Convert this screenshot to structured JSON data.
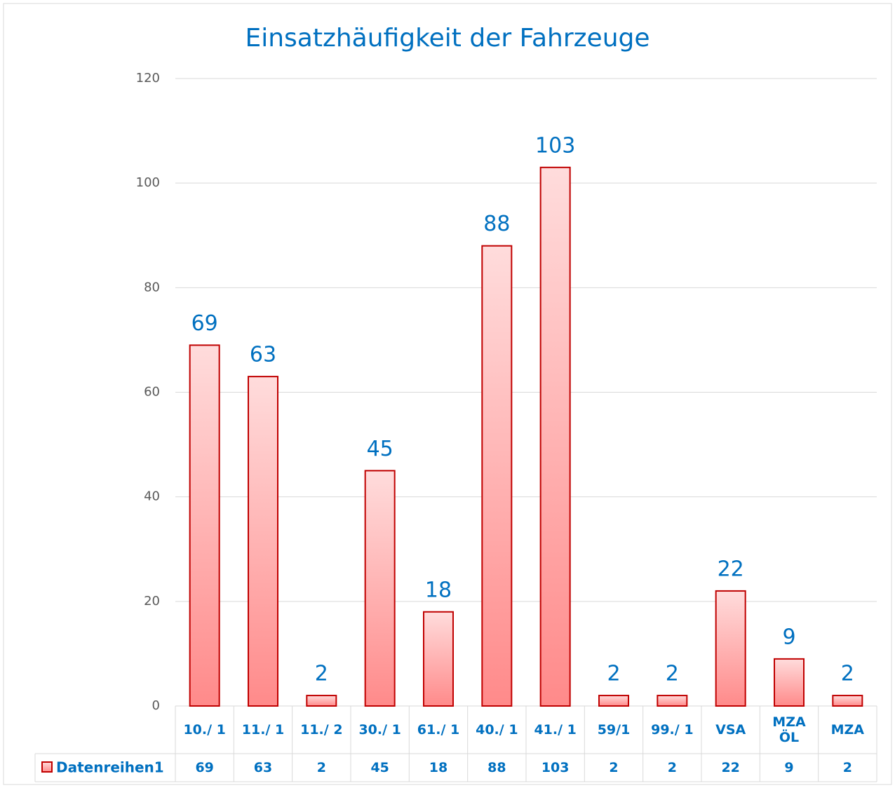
{
  "chart_data": {
    "type": "bar",
    "title": "Einsatzhäufigkeit der Fahrzeuge",
    "categories": [
      "10./ 1",
      "11./ 1",
      "11./ 2",
      "30./ 1",
      "61./ 1",
      "40./ 1",
      "41./ 1",
      "59/1",
      "99./ 1",
      "VSA",
      "MZA ÖL",
      "MZA"
    ],
    "series": [
      {
        "name": "Datenreihen1",
        "color": "#ff8a8a",
        "values": [
          69,
          63,
          2,
          45,
          18,
          88,
          103,
          2,
          2,
          22,
          9,
          2
        ]
      }
    ],
    "ylim": [
      0,
      120
    ],
    "yticks": [
      0,
      20,
      40,
      60,
      80,
      100,
      120
    ],
    "grid": true,
    "data_table": true
  }
}
